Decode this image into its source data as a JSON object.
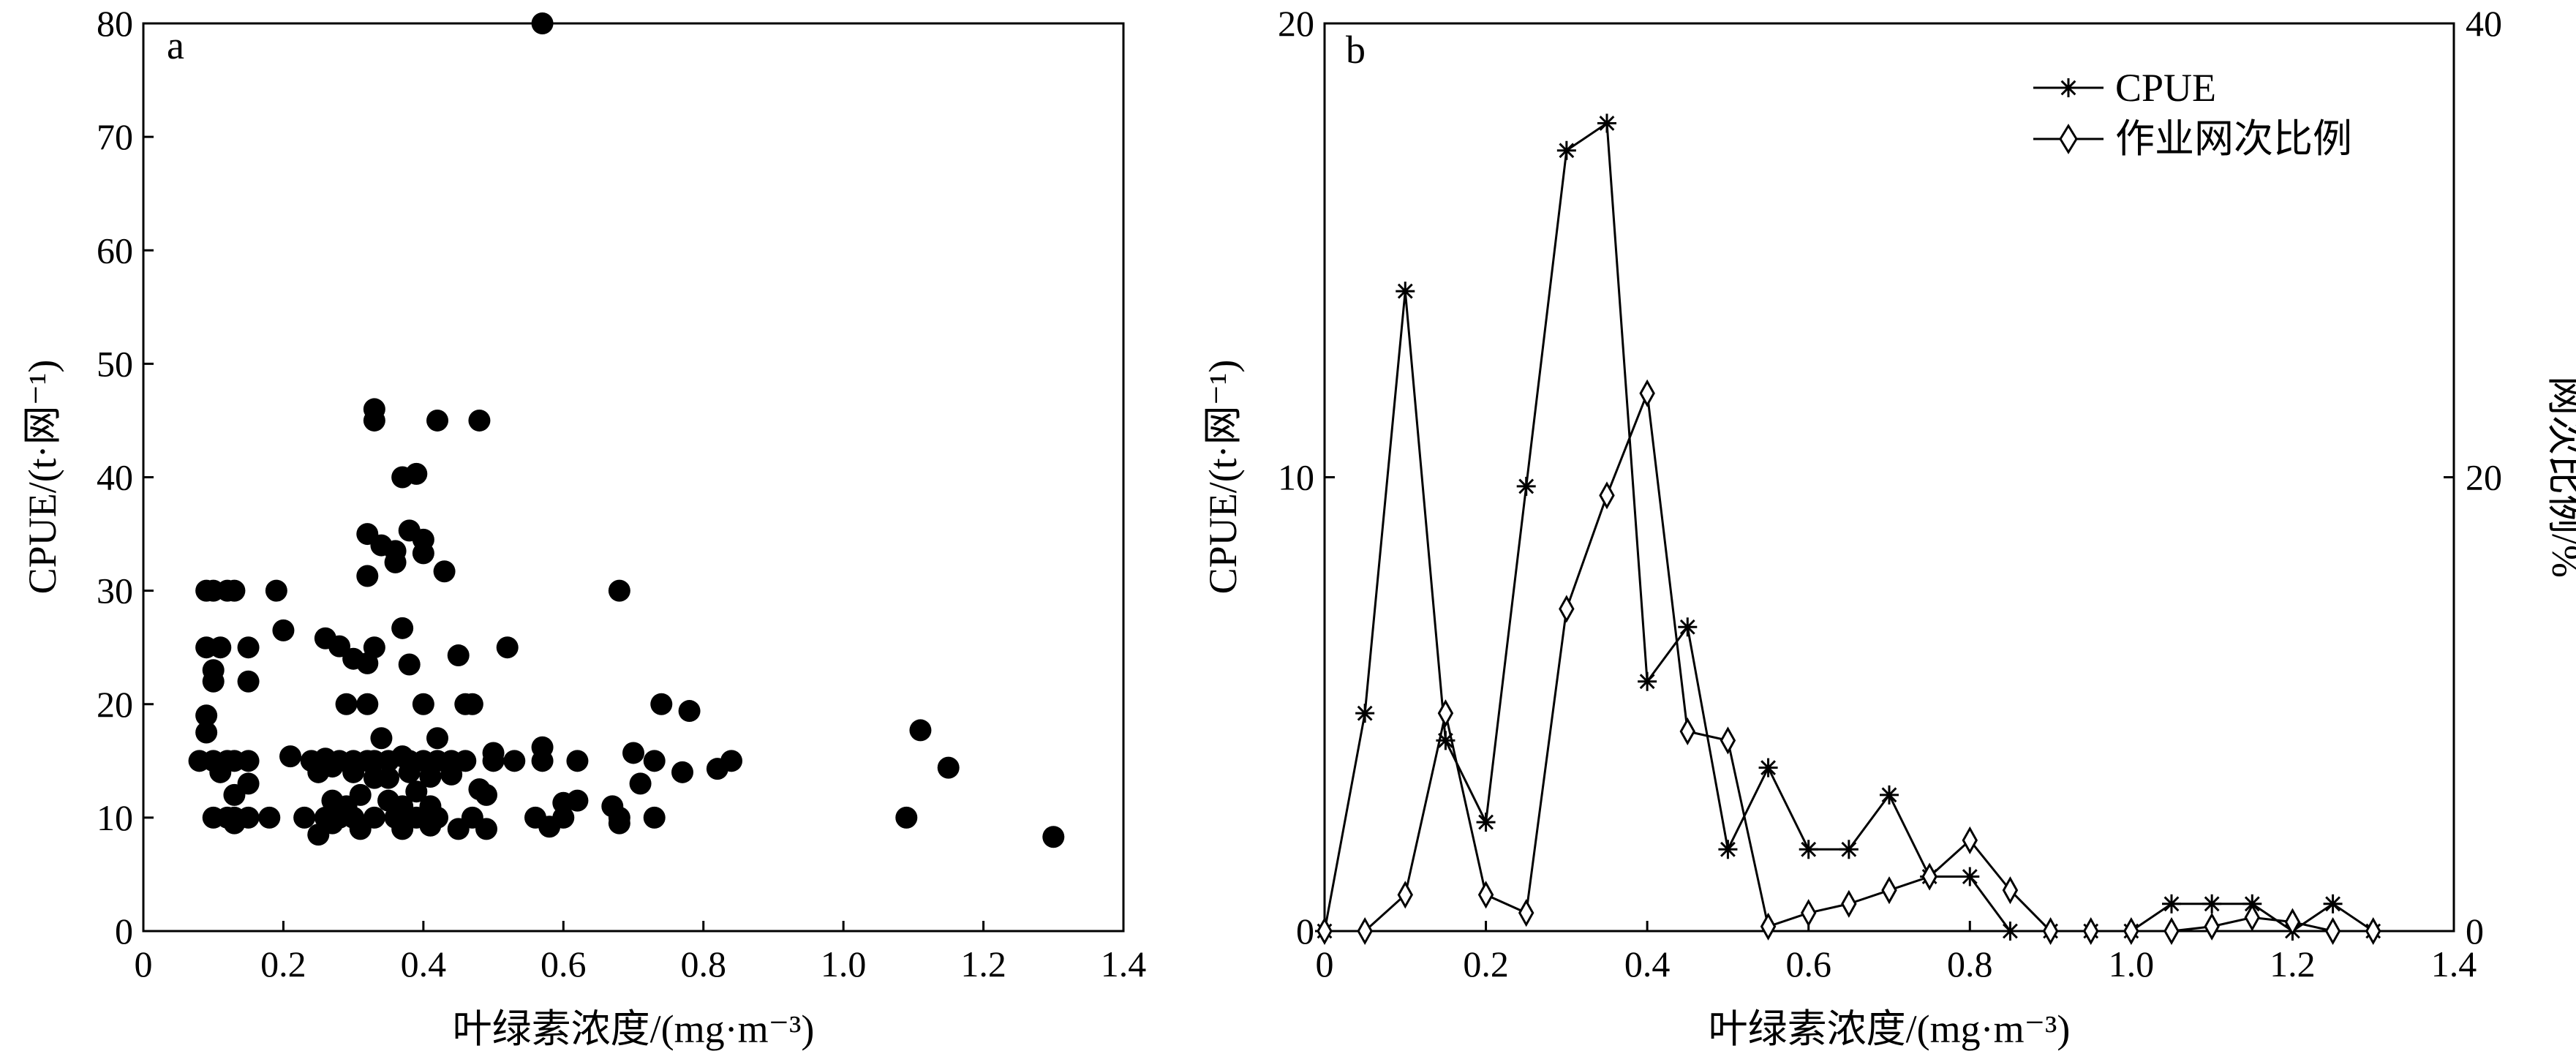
{
  "chart_data": [
    {
      "type": "scatter",
      "panel_label": "a",
      "xlabel": "叶绿素浓度/(mg·m⁻³)",
      "ylabel": "CPUE/(t·网⁻¹)",
      "xlim": [
        0,
        1.4
      ],
      "ylim": [
        0,
        80
      ],
      "xticks": [
        "0",
        "0.2",
        "0.4",
        "0.6",
        "0.8",
        "1.0",
        "1.2",
        "1.4"
      ],
      "yticks": [
        "0",
        "10",
        "20",
        "30",
        "40",
        "50",
        "60",
        "70",
        "80"
      ],
      "grid": false,
      "series": [
        {
          "marker_color": "#000000",
          "points": [
            [
              0.57,
              80
            ],
            [
              0.33,
              46
            ],
            [
              0.33,
              45
            ],
            [
              0.42,
              45
            ],
            [
              0.48,
              45
            ],
            [
              0.37,
              40
            ],
            [
              0.39,
              40.3
            ],
            [
              0.38,
              35.3
            ],
            [
              0.4,
              34.5
            ],
            [
              0.32,
              35
            ],
            [
              0.34,
              34
            ],
            [
              0.36,
              33.5
            ],
            [
              0.36,
              32.5
            ],
            [
              0.4,
              33.3
            ],
            [
              0.43,
              31.7
            ],
            [
              0.32,
              31.3
            ],
            [
              0.09,
              30
            ],
            [
              0.1,
              30
            ],
            [
              0.12,
              30
            ],
            [
              0.13,
              30
            ],
            [
              0.19,
              30
            ],
            [
              0.68,
              30
            ],
            [
              0.37,
              26.7
            ],
            [
              0.2,
              26.5
            ],
            [
              0.26,
              25.8
            ],
            [
              0.28,
              25.1
            ],
            [
              0.09,
              25
            ],
            [
              0.11,
              25
            ],
            [
              0.15,
              25
            ],
            [
              0.52,
              25
            ],
            [
              0.33,
              25
            ],
            [
              0.3,
              24
            ],
            [
              0.32,
              23.6
            ],
            [
              0.38,
              23.5
            ],
            [
              0.45,
              24.3
            ],
            [
              0.1,
              23
            ],
            [
              0.1,
              22
            ],
            [
              0.15,
              22
            ],
            [
              0.29,
              20
            ],
            [
              0.32,
              20
            ],
            [
              0.4,
              20
            ],
            [
              0.46,
              20
            ],
            [
              0.47,
              20
            ],
            [
              0.74,
              20
            ],
            [
              0.78,
              19.4
            ],
            [
              0.09,
              19
            ],
            [
              0.09,
              17.5
            ],
            [
              0.34,
              17
            ],
            [
              0.42,
              17
            ],
            [
              0.57,
              16.2
            ],
            [
              0.5,
              15.7
            ],
            [
              0.7,
              15.7
            ],
            [
              0.08,
              15
            ],
            [
              0.1,
              15
            ],
            [
              0.12,
              15
            ],
            [
              0.13,
              15
            ],
            [
              0.15,
              15
            ],
            [
              0.21,
              15.4
            ],
            [
              0.24,
              15
            ],
            [
              0.26,
              15.2
            ],
            [
              0.28,
              15
            ],
            [
              0.3,
              15
            ],
            [
              0.32,
              15
            ],
            [
              0.33,
              15
            ],
            [
              0.35,
              15
            ],
            [
              0.37,
              15.4
            ],
            [
              0.38,
              15
            ],
            [
              0.4,
              15
            ],
            [
              0.42,
              15
            ],
            [
              0.44,
              15
            ],
            [
              0.46,
              15
            ],
            [
              0.5,
              15
            ],
            [
              0.53,
              15
            ],
            [
              0.57,
              15
            ],
            [
              0.62,
              15
            ],
            [
              0.73,
              15
            ],
            [
              0.84,
              15
            ],
            [
              0.11,
              14
            ],
            [
              0.15,
              13
            ],
            [
              0.25,
              14
            ],
            [
              0.27,
              14.5
            ],
            [
              0.3,
              14
            ],
            [
              0.33,
              13.5
            ],
            [
              0.35,
              13.5
            ],
            [
              0.38,
              14
            ],
            [
              0.41,
              13.6
            ],
            [
              0.44,
              13.8
            ],
            [
              0.48,
              12.5
            ],
            [
              0.49,
              12
            ],
            [
              0.77,
              14
            ],
            [
              0.82,
              14.3
            ],
            [
              0.71,
              13
            ],
            [
              0.13,
              12
            ],
            [
              0.31,
              12
            ],
            [
              0.39,
              12.3
            ],
            [
              0.27,
              11.5
            ],
            [
              0.29,
              11
            ],
            [
              0.35,
              11.5
            ],
            [
              0.37,
              11
            ],
            [
              0.41,
              11
            ],
            [
              0.6,
              11.3
            ],
            [
              0.62,
              11.5
            ],
            [
              0.67,
              11
            ],
            [
              0.1,
              10
            ],
            [
              0.12,
              10
            ],
            [
              0.13,
              10
            ],
            [
              0.15,
              10
            ],
            [
              0.18,
              10
            ],
            [
              0.23,
              10
            ],
            [
              0.26,
              10
            ],
            [
              0.28,
              10
            ],
            [
              0.3,
              10
            ],
            [
              0.33,
              10
            ],
            [
              0.36,
              10
            ],
            [
              0.39,
              10
            ],
            [
              0.42,
              10
            ],
            [
              0.47,
              10
            ],
            [
              0.56,
              10
            ],
            [
              0.6,
              10
            ],
            [
              0.68,
              10
            ],
            [
              0.73,
              10
            ],
            [
              1.09,
              10
            ],
            [
              0.13,
              9.5
            ],
            [
              0.27,
              9.5
            ],
            [
              0.31,
              9
            ],
            [
              0.37,
              9
            ],
            [
              0.41,
              9.3
            ],
            [
              0.45,
              9
            ],
            [
              0.49,
              9
            ],
            [
              0.58,
              9.2
            ],
            [
              0.68,
              9.5
            ],
            [
              0.25,
              8.5
            ],
            [
              1.3,
              8.3
            ],
            [
              1.11,
              17.7
            ],
            [
              1.15,
              14.4
            ]
          ]
        }
      ]
    },
    {
      "type": "line",
      "panel_label": "b",
      "xlabel": "叶绿素浓度/(mg·m⁻³)",
      "ylabel": "CPUE/(t·网⁻¹)",
      "ylabel_right": "网次比例/%",
      "xlim": [
        0,
        1.4
      ],
      "ylim": [
        0,
        20
      ],
      "ylim_right": [
        0,
        40
      ],
      "xticks": [
        "0",
        "0.2",
        "0.4",
        "0.6",
        "0.8",
        "1.0",
        "1.2",
        "1.4"
      ],
      "yticks": [
        "0",
        "10",
        "20"
      ],
      "yticks_right": [
        "0",
        "20",
        "40"
      ],
      "grid": false,
      "legend_position": "top-right",
      "series": [
        {
          "name": "CPUE",
          "axis": "left",
          "marker": "asterisk",
          "x": [
            0,
            0.05,
            0.1,
            0.15,
            0.2,
            0.25,
            0.3,
            0.35,
            0.4,
            0.45,
            0.5,
            0.55,
            0.6,
            0.65,
            0.7,
            0.75,
            0.8,
            0.85,
            0.9,
            0.95,
            1.0,
            1.05,
            1.1,
            1.15,
            1.2,
            1.25,
            1.3
          ],
          "values": [
            0,
            4.8,
            14.1,
            4.2,
            2.4,
            9.8,
            17.2,
            17.8,
            5.5,
            6.7,
            1.8,
            3.6,
            1.8,
            1.8,
            3.0,
            1.2,
            1.2,
            0,
            0,
            0,
            0,
            0.6,
            0.6,
            0.6,
            0,
            0.6,
            0
          ]
        },
        {
          "name": "作业网次比例",
          "axis": "right",
          "marker": "diamond",
          "x": [
            0,
            0.05,
            0.1,
            0.15,
            0.2,
            0.25,
            0.3,
            0.35,
            0.4,
            0.45,
            0.5,
            0.55,
            0.6,
            0.65,
            0.7,
            0.75,
            0.8,
            0.85,
            0.9,
            0.95,
            1.0,
            1.05,
            1.1,
            1.15,
            1.2,
            1.25,
            1.3
          ],
          "values": [
            0,
            0,
            1.6,
            9.6,
            1.6,
            0.8,
            14.2,
            19.2,
            23.7,
            8.8,
            8.4,
            0.2,
            0.8,
            1.2,
            1.8,
            2.4,
            4.0,
            1.8,
            0,
            0,
            0,
            0,
            0.2,
            0.6,
            0.4,
            0,
            0
          ]
        }
      ]
    }
  ]
}
